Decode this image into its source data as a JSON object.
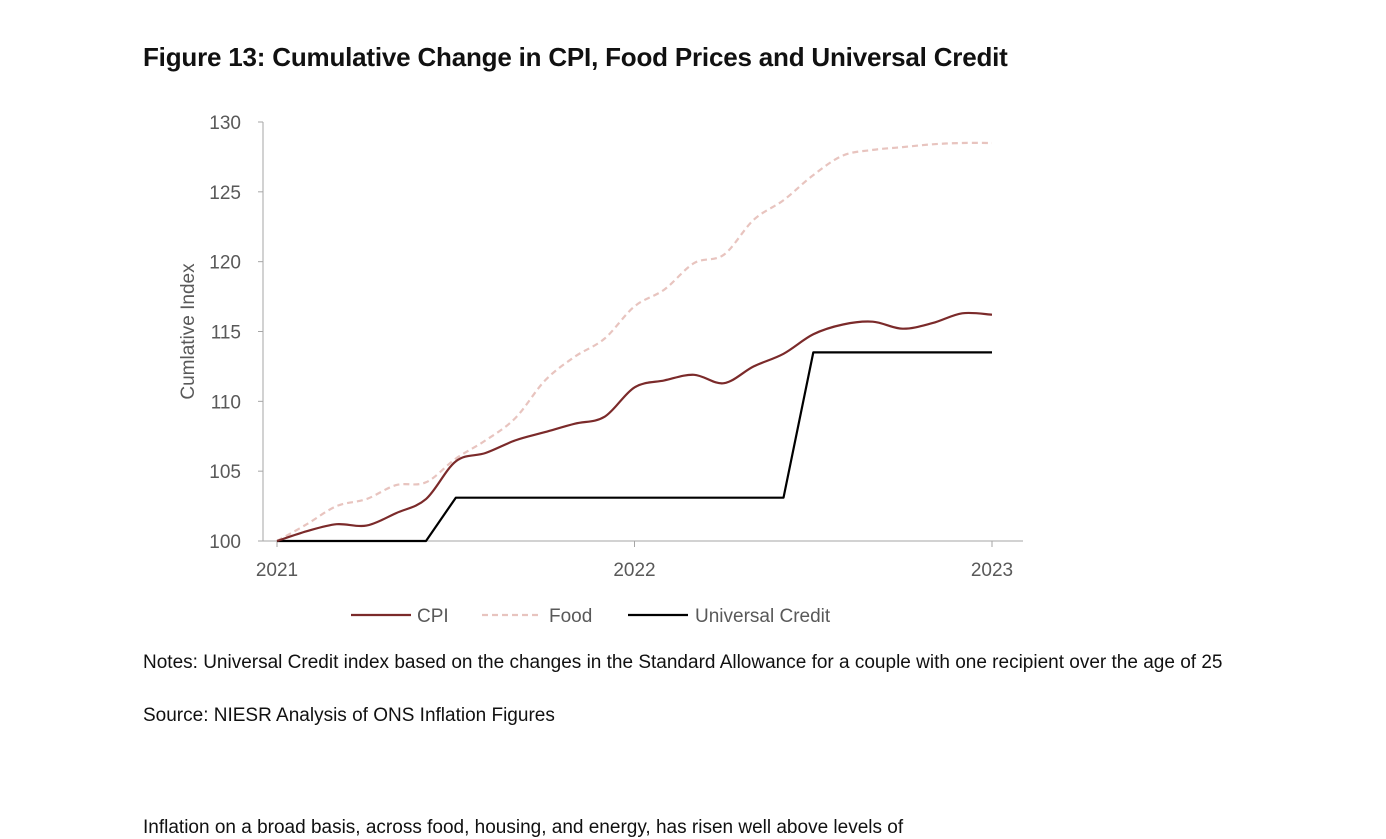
{
  "figure": {
    "title": "Figure 13: Cumulative Change in CPI, Food Prices and Universal Credit",
    "notes": "Notes: Universal Credit index based on the changes in the Standard Allowance for a couple with one recipient over the age of 25",
    "source": "Source: NIESR Analysis of ONS Inflation Figures"
  },
  "chart_data": {
    "type": "line",
    "title": "",
    "xlabel": "",
    "ylabel": "Cumlative Index",
    "ylim": [
      100,
      130
    ],
    "y_ticks": [
      100,
      105,
      110,
      115,
      120,
      125,
      130
    ],
    "x_ticks": [
      {
        "label": "2021",
        "t": 0
      },
      {
        "label": "2022",
        "t": 12
      },
      {
        "label": "2023",
        "t": 24
      }
    ],
    "grid": false,
    "legend_position": "bottom",
    "series": [
      {
        "name": "CPI",
        "color": "#7b2a2a",
        "style": "solid",
        "x": [
          0,
          1,
          2,
          3,
          4,
          5,
          6,
          7,
          8,
          9,
          10,
          11,
          12,
          13,
          14,
          15,
          16,
          17,
          18,
          19,
          20,
          21,
          22,
          23,
          24
        ],
        "values": [
          100.0,
          100.7,
          101.2,
          101.1,
          102.0,
          103.0,
          105.7,
          106.3,
          107.2,
          107.8,
          108.4,
          108.9,
          111.0,
          111.5,
          111.9,
          111.3,
          112.5,
          113.4,
          114.8,
          115.5,
          115.7,
          115.2,
          115.6,
          116.3,
          116.2
        ]
      },
      {
        "name": "Food",
        "color": "#e8c4bf",
        "style": "dashed",
        "x": [
          0,
          1,
          2,
          3,
          4,
          5,
          6,
          7,
          8,
          9,
          10,
          11,
          12,
          13,
          14,
          15,
          16,
          17,
          18,
          19,
          20,
          21,
          22,
          23,
          24
        ],
        "values": [
          100.0,
          101.2,
          102.5,
          103.0,
          104.0,
          104.2,
          105.9,
          107.2,
          108.8,
          111.5,
          113.2,
          114.5,
          116.8,
          118.0,
          119.9,
          120.5,
          123.0,
          124.4,
          126.2,
          127.6,
          128.0,
          128.2,
          128.4,
          128.5,
          128.5
        ]
      },
      {
        "name": "Universal Credit",
        "color": "#000000",
        "style": "solid",
        "x": [
          0,
          5,
          6,
          17,
          18,
          24
        ],
        "values": [
          100.0,
          100.0,
          103.1,
          103.1,
          113.5,
          113.5
        ]
      }
    ]
  },
  "page_cut_text": "Inflation on a broad basis, across food, housing, and energy, has risen well above levels of"
}
